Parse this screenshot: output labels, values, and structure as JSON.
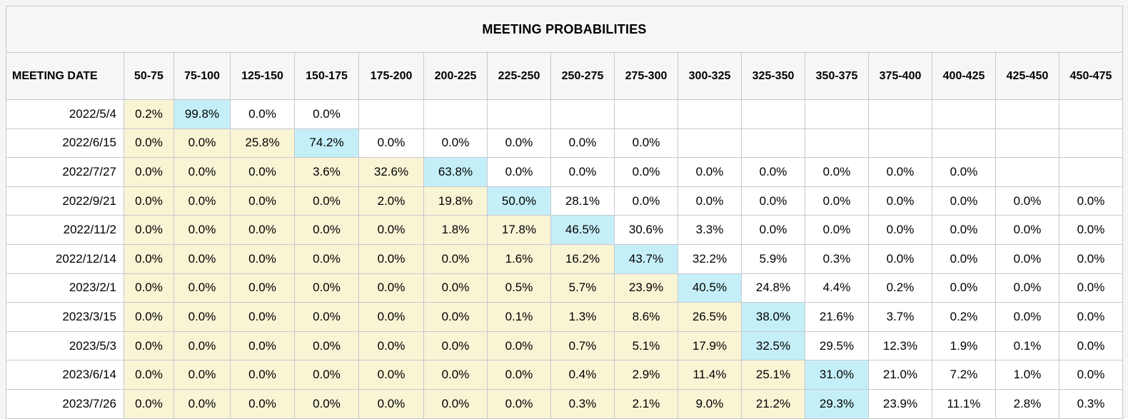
{
  "title": "MEETING PROBABILITIES",
  "columns": {
    "date_label": "MEETING DATE",
    "rate_ranges": [
      "50-75",
      "75-100",
      "125-150",
      "150-175",
      "175-200",
      "200-225",
      "225-250",
      "250-275",
      "275-300",
      "300-325",
      "325-350",
      "350-375",
      "375-400",
      "400-425",
      "425-450",
      "450-475"
    ]
  },
  "rows": [
    {
      "date": "2022/5/4",
      "values": [
        "0.2%",
        "99.8%",
        "0.0%",
        "0.0%",
        null,
        null,
        null,
        null,
        null,
        null,
        null,
        null,
        null,
        null,
        null,
        null
      ]
    },
    {
      "date": "2022/6/15",
      "values": [
        "0.0%",
        "0.0%",
        "25.8%",
        "74.2%",
        "0.0%",
        "0.0%",
        "0.0%",
        "0.0%",
        "0.0%",
        null,
        null,
        null,
        null,
        null,
        null,
        null
      ]
    },
    {
      "date": "2022/7/27",
      "values": [
        "0.0%",
        "0.0%",
        "0.0%",
        "3.6%",
        "32.6%",
        "63.8%",
        "0.0%",
        "0.0%",
        "0.0%",
        "0.0%",
        "0.0%",
        "0.0%",
        "0.0%",
        "0.0%",
        null,
        null
      ]
    },
    {
      "date": "2022/9/21",
      "values": [
        "0.0%",
        "0.0%",
        "0.0%",
        "0.0%",
        "2.0%",
        "19.8%",
        "50.0%",
        "28.1%",
        "0.0%",
        "0.0%",
        "0.0%",
        "0.0%",
        "0.0%",
        "0.0%",
        "0.0%",
        "0.0%"
      ]
    },
    {
      "date": "2022/11/2",
      "values": [
        "0.0%",
        "0.0%",
        "0.0%",
        "0.0%",
        "0.0%",
        "1.8%",
        "17.8%",
        "46.5%",
        "30.6%",
        "3.3%",
        "0.0%",
        "0.0%",
        "0.0%",
        "0.0%",
        "0.0%",
        "0.0%"
      ]
    },
    {
      "date": "2022/12/14",
      "values": [
        "0.0%",
        "0.0%",
        "0.0%",
        "0.0%",
        "0.0%",
        "0.0%",
        "1.6%",
        "16.2%",
        "43.7%",
        "32.2%",
        "5.9%",
        "0.3%",
        "0.0%",
        "0.0%",
        "0.0%",
        "0.0%"
      ]
    },
    {
      "date": "2023/2/1",
      "values": [
        "0.0%",
        "0.0%",
        "0.0%",
        "0.0%",
        "0.0%",
        "0.0%",
        "0.5%",
        "5.7%",
        "23.9%",
        "40.5%",
        "24.8%",
        "4.4%",
        "0.2%",
        "0.0%",
        "0.0%",
        "0.0%"
      ]
    },
    {
      "date": "2023/3/15",
      "values": [
        "0.0%",
        "0.0%",
        "0.0%",
        "0.0%",
        "0.0%",
        "0.0%",
        "0.1%",
        "1.3%",
        "8.6%",
        "26.5%",
        "38.0%",
        "21.6%",
        "3.7%",
        "0.2%",
        "0.0%",
        "0.0%"
      ]
    },
    {
      "date": "2023/5/3",
      "values": [
        "0.0%",
        "0.0%",
        "0.0%",
        "0.0%",
        "0.0%",
        "0.0%",
        "0.0%",
        "0.7%",
        "5.1%",
        "17.9%",
        "32.5%",
        "29.5%",
        "12.3%",
        "1.9%",
        "0.1%",
        "0.0%"
      ]
    },
    {
      "date": "2023/6/14",
      "values": [
        "0.0%",
        "0.0%",
        "0.0%",
        "0.0%",
        "0.0%",
        "0.0%",
        "0.0%",
        "0.4%",
        "2.9%",
        "11.4%",
        "25.1%",
        "31.0%",
        "21.0%",
        "7.2%",
        "1.0%",
        "0.0%"
      ]
    },
    {
      "date": "2023/7/26",
      "values": [
        "0.0%",
        "0.0%",
        "0.0%",
        "0.0%",
        "0.0%",
        "0.0%",
        "0.0%",
        "0.3%",
        "2.1%",
        "9.0%",
        "21.2%",
        "29.3%",
        "23.9%",
        "11.1%",
        "2.8%",
        "0.3%"
      ]
    }
  ],
  "colors": {
    "below_max_cell": "#F9F4D4",
    "max_cell": "#C5EFF8",
    "after_max_cell": "#FFFFFF",
    "header_background": "#F6F6F7",
    "grid_border": "#C6C8D2",
    "outer_border": "#9EA1A8"
  },
  "chart_data": {
    "type": "table",
    "title": "MEETING PROBABILITIES",
    "row_header": "MEETING DATE",
    "categories": [
      "50-75",
      "75-100",
      "125-150",
      "150-175",
      "175-200",
      "200-225",
      "225-250",
      "250-275",
      "275-300",
      "300-325",
      "325-350",
      "350-375",
      "375-400",
      "400-425",
      "425-450",
      "450-475"
    ],
    "series": [
      {
        "name": "2022/5/4",
        "values": [
          0.2,
          99.8,
          0.0,
          0.0,
          null,
          null,
          null,
          null,
          null,
          null,
          null,
          null,
          null,
          null,
          null,
          null
        ]
      },
      {
        "name": "2022/6/15",
        "values": [
          0.0,
          0.0,
          25.8,
          74.2,
          0.0,
          0.0,
          0.0,
          0.0,
          0.0,
          null,
          null,
          null,
          null,
          null,
          null,
          null
        ]
      },
      {
        "name": "2022/7/27",
        "values": [
          0.0,
          0.0,
          0.0,
          3.6,
          32.6,
          63.8,
          0.0,
          0.0,
          0.0,
          0.0,
          0.0,
          0.0,
          0.0,
          0.0,
          null,
          null
        ]
      },
      {
        "name": "2022/9/21",
        "values": [
          0.0,
          0.0,
          0.0,
          0.0,
          2.0,
          19.8,
          50.0,
          28.1,
          0.0,
          0.0,
          0.0,
          0.0,
          0.0,
          0.0,
          0.0,
          0.0
        ]
      },
      {
        "name": "2022/11/2",
        "values": [
          0.0,
          0.0,
          0.0,
          0.0,
          0.0,
          1.8,
          17.8,
          46.5,
          30.6,
          3.3,
          0.0,
          0.0,
          0.0,
          0.0,
          0.0,
          0.0
        ]
      },
      {
        "name": "2022/12/14",
        "values": [
          0.0,
          0.0,
          0.0,
          0.0,
          0.0,
          0.0,
          1.6,
          16.2,
          43.7,
          32.2,
          5.9,
          0.3,
          0.0,
          0.0,
          0.0,
          0.0
        ]
      },
      {
        "name": "2023/2/1",
        "values": [
          0.0,
          0.0,
          0.0,
          0.0,
          0.0,
          0.0,
          0.5,
          5.7,
          23.9,
          40.5,
          24.8,
          4.4,
          0.2,
          0.0,
          0.0,
          0.0
        ]
      },
      {
        "name": "2023/3/15",
        "values": [
          0.0,
          0.0,
          0.0,
          0.0,
          0.0,
          0.0,
          0.1,
          1.3,
          8.6,
          26.5,
          38.0,
          21.6,
          3.7,
          0.2,
          0.0,
          0.0
        ]
      },
      {
        "name": "2023/5/3",
        "values": [
          0.0,
          0.0,
          0.0,
          0.0,
          0.0,
          0.0,
          0.0,
          0.7,
          5.1,
          17.9,
          32.5,
          29.5,
          12.3,
          1.9,
          0.1,
          0.0
        ]
      },
      {
        "name": "2023/6/14",
        "values": [
          0.0,
          0.0,
          0.0,
          0.0,
          0.0,
          0.0,
          0.0,
          0.4,
          2.9,
          11.4,
          25.1,
          31.0,
          21.0,
          7.2,
          1.0,
          0.0
        ]
      },
      {
        "name": "2023/7/26",
        "values": [
          0.0,
          0.0,
          0.0,
          0.0,
          0.0,
          0.0,
          0.0,
          0.3,
          2.1,
          9.0,
          21.2,
          29.3,
          23.9,
          11.1,
          2.8,
          0.3
        ]
      }
    ],
    "highlight_rule": "cells left of row maximum shaded yellow, row maximum shaded cyan, cells right of maximum white"
  }
}
